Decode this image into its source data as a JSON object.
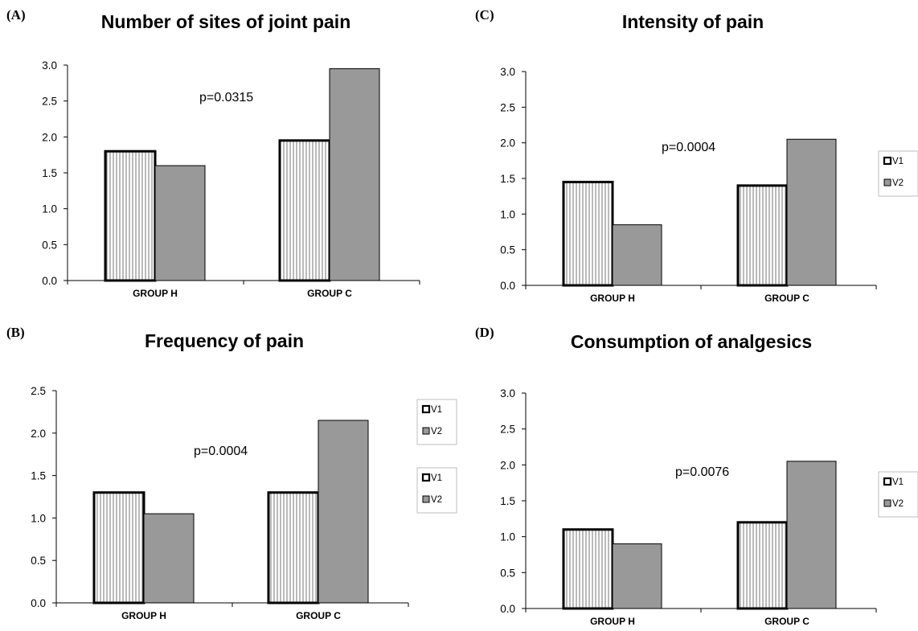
{
  "figure": {
    "panels": [
      {
        "letter": "(A)"
      },
      {
        "letter": "(C)"
      },
      {
        "letter": "(B)"
      },
      {
        "letter": "(D)"
      }
    ]
  },
  "chart_data": [
    {
      "type": "bar",
      "title": "Number of sites of joint pain",
      "categories": [
        "GROUP H",
        "GROUP C"
      ],
      "series": [
        {
          "name": "V1",
          "values": [
            1.8,
            1.95
          ],
          "style": "white-hatched"
        },
        {
          "name": "V2",
          "values": [
            1.6,
            2.95
          ],
          "style": "gray"
        }
      ],
      "annotation": "p=0.0315",
      "ylim": [
        0,
        3.0
      ],
      "yticks": [
        "0.0",
        "0.5",
        "1.0",
        "1.5",
        "2.0",
        "2.5",
        "3.0"
      ],
      "legend": "right",
      "colors": {
        "v1_fill": "#ffffff",
        "v2_fill": "#999999"
      }
    },
    {
      "type": "bar",
      "title": "Intensity of pain",
      "categories": [
        "GROUP H",
        "GROUP C"
      ],
      "series": [
        {
          "name": "V1",
          "values": [
            1.45,
            1.4
          ],
          "style": "white-hatched"
        },
        {
          "name": "V2",
          "values": [
            0.85,
            2.05
          ],
          "style": "gray"
        }
      ],
      "annotation": "p=0.0004",
      "ylim": [
        0,
        3.0
      ],
      "yticks": [
        "0.0",
        "0.5",
        "1.0",
        "1.5",
        "2.0",
        "2.5",
        "3.0"
      ],
      "legend": "right",
      "colors": {
        "v1_fill": "#ffffff",
        "v2_fill": "#999999"
      }
    },
    {
      "type": "bar",
      "title": "Frequency of pain",
      "categories": [
        "GROUP H",
        "GROUP C"
      ],
      "series": [
        {
          "name": "V1",
          "values": [
            1.3,
            1.3
          ],
          "style": "white-hatched"
        },
        {
          "name": "V2",
          "values": [
            1.05,
            2.15
          ],
          "style": "gray"
        }
      ],
      "annotation": "p=0.0004",
      "ylim": [
        0,
        2.5
      ],
      "yticks": [
        "0.0",
        "0.5",
        "1.0",
        "1.5",
        "2.0",
        "2.5"
      ],
      "legend": "right",
      "colors": {
        "v1_fill": "#ffffff",
        "v2_fill": "#999999"
      }
    },
    {
      "type": "bar",
      "title": "Consumption of analgesics",
      "categories": [
        "GROUP H",
        "GROUP C"
      ],
      "series": [
        {
          "name": "V1",
          "values": [
            1.1,
            1.2
          ],
          "style": "white-hatched"
        },
        {
          "name": "V2",
          "values": [
            0.9,
            2.05
          ],
          "style": "gray"
        }
      ],
      "annotation": "p=0.0076",
      "ylim": [
        0,
        3.0
      ],
      "yticks": [
        "0.0",
        "0.5",
        "1.0",
        "1.5",
        "2.0",
        "2.5",
        "3.0"
      ],
      "legend": "right",
      "colors": {
        "v1_fill": "#ffffff",
        "v2_fill": "#999999"
      }
    }
  ]
}
